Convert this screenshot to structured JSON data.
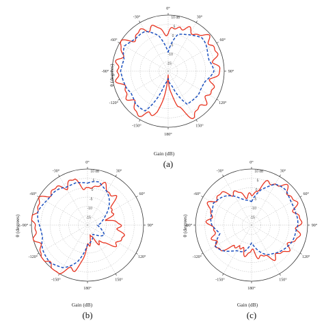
{
  "chart_data": [
    {
      "type": "polar-line",
      "panel_label": "(a)",
      "gain_label": "Gain (dB)",
      "theta_label": "θ (degrees)",
      "angle_ticks": [
        "0°",
        "30°",
        "60°",
        "90°",
        "120°",
        "150°",
        "180°",
        "-150°",
        "-120°",
        "-90°",
        "-60°",
        "-30°"
      ],
      "radial_ticks": [
        "10 dB",
        "5",
        "0",
        "-5",
        "-10",
        "-15"
      ],
      "rlim": [
        -20,
        10
      ],
      "series": [
        {
          "color": "#e8321e",
          "style": "solid",
          "theta": [
            0,
            15,
            30,
            45,
            60,
            75,
            90,
            105,
            120,
            135,
            150,
            165,
            180,
            195,
            210,
            225,
            240,
            255,
            270,
            285,
            300,
            315,
            330,
            345
          ],
          "gain": [
            0,
            5,
            4,
            7,
            8,
            6,
            7,
            4,
            6,
            5,
            8,
            0,
            -18,
            2,
            8,
            6,
            5,
            6,
            8,
            6,
            9,
            5,
            6,
            4
          ]
        },
        {
          "color": "#1a4fbf",
          "style": "dashed",
          "theta": [
            0,
            15,
            30,
            45,
            60,
            75,
            90,
            105,
            120,
            135,
            150,
            165,
            180,
            195,
            210,
            225,
            240,
            255,
            270,
            285,
            300,
            315,
            330,
            345
          ],
          "gain": [
            -10,
            0,
            3,
            5,
            4,
            3,
            4,
            1,
            0,
            0,
            1,
            -12,
            -16,
            -12,
            4,
            5,
            3,
            4,
            6,
            4,
            7,
            5,
            4,
            0
          ]
        }
      ]
    },
    {
      "type": "polar-line",
      "panel_label": "(b)",
      "gain_label": "Gain (dB)",
      "theta_label": "θ (degrees)",
      "angle_ticks": [
        "0°",
        "30°",
        "60°",
        "90°",
        "120°",
        "150°",
        "180°",
        "-150°",
        "-120°",
        "-90°",
        "-60°",
        "-30°"
      ],
      "radial_ticks": [
        "10 dB",
        "5",
        "0",
        "-5",
        "-10",
        "-15"
      ],
      "rlim": [
        -20,
        10
      ],
      "series": [
        {
          "color": "#e8321e",
          "style": "solid",
          "theta": [
            0,
            15,
            30,
            45,
            60,
            75,
            90,
            105,
            120,
            135,
            150,
            165,
            180,
            195,
            210,
            225,
            240,
            255,
            270,
            285,
            300,
            315,
            330,
            345
          ],
          "gain": [
            -2,
            3,
            2,
            0,
            -5,
            -8,
            -3,
            -1,
            0,
            -6,
            -10,
            -14,
            -8,
            4,
            9,
            10,
            9,
            8,
            9,
            9,
            8,
            6,
            4,
            5
          ]
        },
        {
          "color": "#1a4fbf",
          "style": "dashed",
          "theta": [
            0,
            15,
            30,
            45,
            60,
            75,
            90,
            105,
            120,
            135,
            150,
            165,
            180,
            195,
            210,
            225,
            240,
            255,
            270,
            285,
            300,
            315,
            330,
            345
          ],
          "gain": [
            2,
            4,
            1,
            -4,
            -8,
            -12,
            -15,
            -12,
            -10,
            -12,
            -14,
            -12,
            -9,
            0,
            6,
            9,
            7,
            5,
            6,
            7,
            6,
            5,
            3,
            4
          ]
        }
      ]
    },
    {
      "type": "polar-line",
      "panel_label": "(c)",
      "gain_label": "Gain (dB)",
      "theta_label": "θ (degrees)",
      "angle_ticks": [
        "0°",
        "30°",
        "60°",
        "90°",
        "120°",
        "150°",
        "180°",
        "-150°",
        "-120°",
        "-90°",
        "-60°",
        "-30°"
      ],
      "radial_ticks": [
        "10 dB",
        "5",
        "0",
        "-5",
        "-10",
        "-15"
      ],
      "rlim": [
        -20,
        10
      ],
      "series": [
        {
          "color": "#e8321e",
          "style": "solid",
          "theta": [
            0,
            15,
            30,
            45,
            60,
            75,
            90,
            105,
            120,
            135,
            150,
            165,
            180,
            195,
            210,
            225,
            240,
            255,
            270,
            285,
            300,
            315,
            330,
            345
          ],
          "gain": [
            -5,
            2,
            6,
            7,
            6,
            5,
            6,
            5,
            3,
            2,
            0,
            -3,
            -6,
            -4,
            -8,
            -2,
            3,
            0,
            2,
            3,
            5,
            3,
            0,
            -3
          ]
        },
        {
          "color": "#1a4fbf",
          "style": "dashed",
          "theta": [
            0,
            15,
            30,
            45,
            60,
            75,
            90,
            105,
            120,
            135,
            150,
            165,
            180,
            195,
            210,
            225,
            240,
            255,
            270,
            285,
            300,
            315,
            330,
            345
          ],
          "gain": [
            -8,
            0,
            5,
            6,
            5,
            4,
            5,
            4,
            2,
            1,
            -2,
            -6,
            -10,
            -6,
            -4,
            0,
            2,
            -2,
            1,
            2,
            4,
            1,
            -2,
            -6
          ]
        }
      ]
    }
  ]
}
